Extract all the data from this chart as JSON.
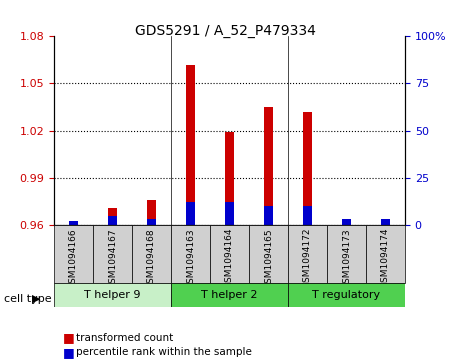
{
  "title": "GDS5291 / A_52_P479334",
  "samples": [
    "GSM1094166",
    "GSM1094167",
    "GSM1094168",
    "GSM1094163",
    "GSM1094164",
    "GSM1094165",
    "GSM1094172",
    "GSM1094173",
    "GSM1094174"
  ],
  "red_values": [
    0.962,
    0.971,
    0.976,
    1.062,
    1.019,
    1.035,
    1.032,
    0.961,
    0.963
  ],
  "blue_values": [
    2.0,
    5.0,
    3.0,
    12.0,
    12.0,
    10.0,
    10.0,
    3.0,
    3.0
  ],
  "ylim_left": [
    0.96,
    1.08
  ],
  "ylim_right": [
    0,
    100
  ],
  "yticks_left": [
    0.96,
    0.99,
    1.02,
    1.05,
    1.08
  ],
  "yticks_right": [
    0,
    25,
    50,
    75,
    100
  ],
  "ytick_labels_right": [
    "0",
    "25",
    "50",
    "75",
    "100%"
  ],
  "cell_groups": [
    {
      "label": "T helper 9",
      "indices": [
        0,
        1,
        2
      ],
      "color": "#c8f0c8"
    },
    {
      "label": "T helper 2",
      "indices": [
        3,
        4,
        5
      ],
      "color": "#50d050"
    },
    {
      "label": "T regulatory",
      "indices": [
        6,
        7,
        8
      ],
      "color": "#50d050"
    }
  ],
  "bar_width": 0.35,
  "red_color": "#cc0000",
  "blue_color": "#0000cc",
  "baseline": 0.96,
  "background_color": "#ffffff",
  "plot_bg_color": "#ffffff",
  "cell_type_label": "cell type",
  "legend_red": "transformed count",
  "legend_blue": "percentile rank within the sample",
  "grid_color": "#000000",
  "tick_color_left": "#cc0000",
  "tick_color_right": "#0000cc"
}
